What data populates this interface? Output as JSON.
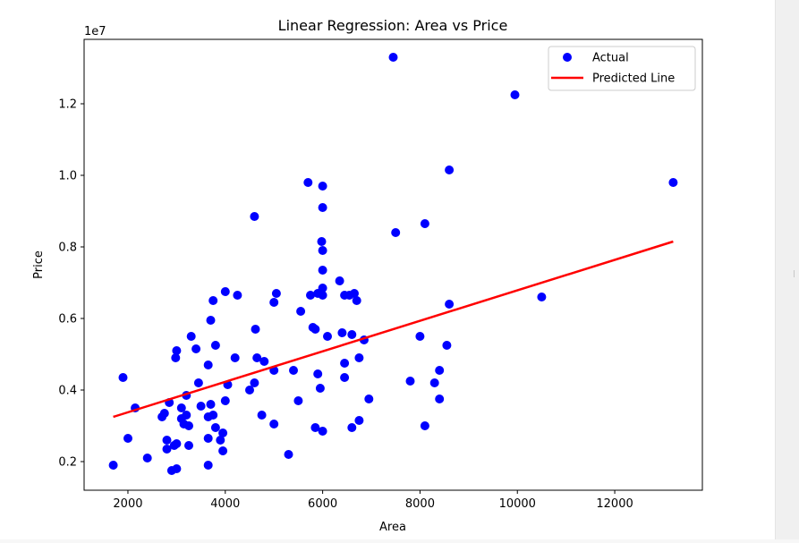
{
  "chart_data": {
    "type": "scatter",
    "title": "Linear Regression: Area vs Price",
    "xlabel": "Area",
    "ylabel": "Price",
    "y_offset_label": "1e7",
    "xlim": [
      1100,
      13800
    ],
    "ylim": [
      1.2,
      13.8
    ],
    "xticks": [
      2000,
      4000,
      6000,
      8000,
      10000,
      12000
    ],
    "xtick_labels": [
      "2000",
      "4000",
      "6000",
      "8000",
      "10000",
      "12000"
    ],
    "yticks": [
      2,
      4,
      6,
      8,
      10,
      12
    ],
    "ytick_labels": [
      "0.2",
      "0.4",
      "0.6",
      "0.8",
      "1.0",
      "1.2"
    ],
    "grid": false,
    "legend_position": "top-right",
    "series": [
      {
        "name": "Actual",
        "kind": "scatter",
        "color": "#0000ff",
        "points": [
          [
            1700,
            1.9
          ],
          [
            1900,
            4.35
          ],
          [
            2000,
            2.65
          ],
          [
            2150,
            3.5
          ],
          [
            2400,
            2.1
          ],
          [
            2700,
            3.25
          ],
          [
            2750,
            3.35
          ],
          [
            2800,
            2.6
          ],
          [
            2800,
            2.35
          ],
          [
            2850,
            3.65
          ],
          [
            2900,
            1.75
          ],
          [
            2950,
            2.45
          ],
          [
            2980,
            4.9
          ],
          [
            3000,
            5.1
          ],
          [
            3000,
            2.5
          ],
          [
            3000,
            1.8
          ],
          [
            3100,
            3.2
          ],
          [
            3100,
            3.5
          ],
          [
            3150,
            3.05
          ],
          [
            3200,
            3.85
          ],
          [
            3200,
            3.3
          ],
          [
            3250,
            2.45
          ],
          [
            3250,
            3.0
          ],
          [
            3300,
            5.5
          ],
          [
            3400,
            5.15
          ],
          [
            3450,
            4.2
          ],
          [
            3500,
            3.55
          ],
          [
            3650,
            4.7
          ],
          [
            3650,
            3.25
          ],
          [
            3650,
            2.65
          ],
          [
            3650,
            1.9
          ],
          [
            3700,
            5.95
          ],
          [
            3700,
            3.6
          ],
          [
            3750,
            3.3
          ],
          [
            3750,
            6.5
          ],
          [
            3800,
            5.25
          ],
          [
            3800,
            2.95
          ],
          [
            3900,
            2.6
          ],
          [
            3950,
            2.8
          ],
          [
            3950,
            2.3
          ],
          [
            4000,
            6.75
          ],
          [
            4000,
            3.7
          ],
          [
            4050,
            4.15
          ],
          [
            4200,
            4.9
          ],
          [
            4250,
            6.65
          ],
          [
            4500,
            4.0
          ],
          [
            4600,
            8.85
          ],
          [
            4600,
            4.2
          ],
          [
            4620,
            5.7
          ],
          [
            4650,
            4.9
          ],
          [
            4750,
            3.3
          ],
          [
            4800,
            4.8
          ],
          [
            5000,
            6.45
          ],
          [
            5000,
            4.55
          ],
          [
            5000,
            3.05
          ],
          [
            5050,
            6.7
          ],
          [
            5300,
            2.2
          ],
          [
            5400,
            4.55
          ],
          [
            5500,
            3.7
          ],
          [
            5550,
            6.2
          ],
          [
            5700,
            9.8
          ],
          [
            5750,
            6.65
          ],
          [
            5800,
            5.75
          ],
          [
            5850,
            5.7
          ],
          [
            5850,
            2.95
          ],
          [
            5900,
            6.7
          ],
          [
            5900,
            4.45
          ],
          [
            5950,
            4.05
          ],
          [
            5980,
            8.15
          ],
          [
            6000,
            9.7
          ],
          [
            6000,
            9.1
          ],
          [
            6000,
            7.9
          ],
          [
            6000,
            7.35
          ],
          [
            6000,
            6.85
          ],
          [
            6000,
            6.65
          ],
          [
            6000,
            2.85
          ],
          [
            6100,
            5.5
          ],
          [
            6350,
            7.05
          ],
          [
            6400,
            5.6
          ],
          [
            6450,
            6.65
          ],
          [
            6450,
            4.75
          ],
          [
            6450,
            4.35
          ],
          [
            6550,
            6.65
          ],
          [
            6600,
            5.55
          ],
          [
            6600,
            2.95
          ],
          [
            6650,
            6.7
          ],
          [
            6700,
            6.5
          ],
          [
            6750,
            4.9
          ],
          [
            6750,
            3.15
          ],
          [
            6850,
            5.4
          ],
          [
            6950,
            3.75
          ],
          [
            7450,
            13.3
          ],
          [
            7500,
            8.4
          ],
          [
            7800,
            4.25
          ],
          [
            8000,
            5.5
          ],
          [
            8100,
            8.65
          ],
          [
            8100,
            3.0
          ],
          [
            8300,
            4.2
          ],
          [
            8400,
            4.55
          ],
          [
            8400,
            3.75
          ],
          [
            8550,
            5.25
          ],
          [
            8600,
            10.15
          ],
          [
            8600,
            6.4
          ],
          [
            9950,
            12.25
          ],
          [
            10500,
            6.6
          ],
          [
            13200,
            9.8
          ]
        ]
      },
      {
        "name": "Predicted Line",
        "kind": "line",
        "color": "#ff0000",
        "points": [
          [
            1700,
            3.25
          ],
          [
            13200,
            8.15
          ]
        ]
      }
    ]
  }
}
